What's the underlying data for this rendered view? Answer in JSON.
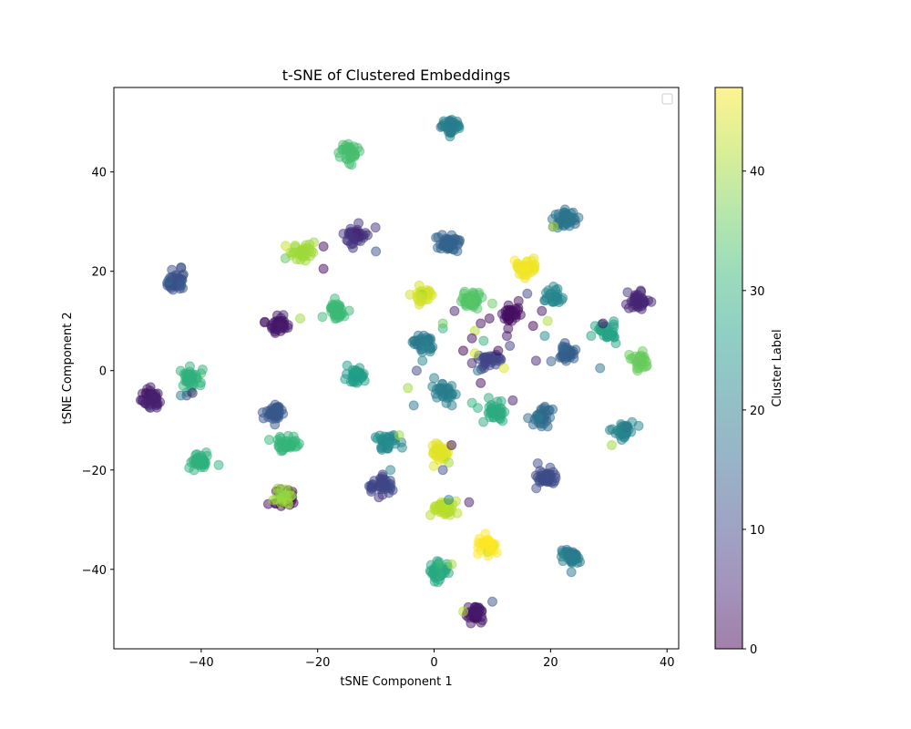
{
  "chart_data": {
    "type": "scatter",
    "title": "t-SNE of Clustered Embeddings",
    "xlabel": "tSNE Component 1",
    "ylabel": "tSNE Component 2",
    "xlim": [
      -55,
      42
    ],
    "ylim": [
      -56,
      57
    ],
    "xticks": [
      -40,
      -20,
      0,
      20,
      40
    ],
    "yticks": [
      -40,
      -20,
      0,
      20,
      40
    ],
    "grid": false,
    "legend": "top-right (empty)",
    "marker_alpha": 0.5,
    "colorbar": {
      "label": "Cluster Label",
      "range": [
        0,
        47
      ],
      "ticks": [
        0,
        10,
        20,
        30,
        40
      ],
      "colormap": "viridis",
      "colormap_stops": [
        "#440154",
        "#482878",
        "#3e4989",
        "#31688e",
        "#26828e",
        "#1f9e89",
        "#35b779",
        "#6ece58",
        "#b5de2b",
        "#fde725"
      ]
    },
    "clusters": [
      {
        "cx": 3,
        "cy": 49.5,
        "label": 20,
        "n": 40
      },
      {
        "cx": -14.5,
        "cy": 43.5,
        "label": 33,
        "n": 35
      },
      {
        "cx": 22.5,
        "cy": 30.5,
        "label": 18,
        "n": 40
      },
      {
        "cx": -13.5,
        "cy": 27,
        "label": 7,
        "n": 40
      },
      {
        "cx": 2.5,
        "cy": 25.5,
        "label": 15,
        "n": 45
      },
      {
        "cx": -22.5,
        "cy": 24,
        "label": 40,
        "n": 35
      },
      {
        "cx": 15.5,
        "cy": 20.5,
        "label": 46,
        "n": 40
      },
      {
        "cx": -44.5,
        "cy": 18,
        "label": 12,
        "n": 45
      },
      {
        "cx": -2,
        "cy": 15,
        "label": 44,
        "n": 30
      },
      {
        "cx": 6.5,
        "cy": 14.5,
        "label": 34,
        "n": 35
      },
      {
        "cx": -17,
        "cy": 12,
        "label": 32,
        "n": 40
      },
      {
        "cx": 35,
        "cy": 14,
        "label": 5,
        "n": 40
      },
      {
        "cx": 20.5,
        "cy": 15,
        "label": 22,
        "n": 25
      },
      {
        "cx": -26.5,
        "cy": 9.5,
        "label": 3,
        "n": 40
      },
      {
        "cx": 30,
        "cy": 8,
        "label": 27,
        "n": 30
      },
      {
        "cx": 13,
        "cy": 11,
        "label": 2,
        "n": 30
      },
      {
        "cx": -2,
        "cy": 5.5,
        "label": 19,
        "n": 35
      },
      {
        "cx": 35.5,
        "cy": 2,
        "label": 36,
        "n": 30
      },
      {
        "cx": 23,
        "cy": 3.5,
        "label": 14,
        "n": 40
      },
      {
        "cx": 9.5,
        "cy": 2,
        "label": 10,
        "n": 30
      },
      {
        "cx": -42,
        "cy": -1.5,
        "label": 30,
        "n": 40
      },
      {
        "cx": -13.5,
        "cy": -1,
        "label": 26,
        "n": 35
      },
      {
        "cx": 1.5,
        "cy": -4,
        "label": 20,
        "n": 30
      },
      {
        "cx": -48.5,
        "cy": -5.5,
        "label": 4,
        "n": 40
      },
      {
        "cx": -27.5,
        "cy": -8.5,
        "label": 13,
        "n": 35
      },
      {
        "cx": 10.5,
        "cy": -8.5,
        "label": 29,
        "n": 35
      },
      {
        "cx": 18.5,
        "cy": -9,
        "label": 16,
        "n": 35
      },
      {
        "cx": 32.5,
        "cy": -12,
        "label": 21,
        "n": 35
      },
      {
        "cx": -25.5,
        "cy": -15,
        "label": 31,
        "n": 35
      },
      {
        "cx": -8,
        "cy": -14.5,
        "label": 22,
        "n": 30
      },
      {
        "cx": 1,
        "cy": -16.5,
        "label": 45,
        "n": 40
      },
      {
        "cx": -40.5,
        "cy": -18.5,
        "label": 30,
        "n": 40
      },
      {
        "cx": -9,
        "cy": -23,
        "label": 10,
        "n": 40
      },
      {
        "cx": 19,
        "cy": -21.5,
        "label": 11,
        "n": 40
      },
      {
        "cx": -25.5,
        "cy": -25.5,
        "label": 1,
        "n": 30
      },
      {
        "cx": -26,
        "cy": -25.5,
        "label": 40,
        "n": 20
      },
      {
        "cx": 1.5,
        "cy": -27.5,
        "label": 42,
        "n": 35
      },
      {
        "cx": 9,
        "cy": -35,
        "label": 47,
        "n": 35
      },
      {
        "cx": 23.5,
        "cy": -37.5,
        "label": 20,
        "n": 40
      },
      {
        "cx": 1,
        "cy": -40.5,
        "label": 28,
        "n": 45
      },
      {
        "cx": 7,
        "cy": -49,
        "label": 3,
        "n": 40
      }
    ],
    "scattered": [
      {
        "x": -19,
        "y": 25,
        "label": 2
      },
      {
        "x": -19,
        "y": 20.5,
        "label": 1
      },
      {
        "x": -10,
        "y": 24,
        "label": 12
      },
      {
        "x": 3.5,
        "y": 12,
        "label": 5
      },
      {
        "x": 8,
        "y": 9.5,
        "label": 2
      },
      {
        "x": 10,
        "y": 13.5,
        "label": 36
      },
      {
        "x": 9.5,
        "y": 10.5,
        "label": 1
      },
      {
        "x": 12.5,
        "y": 7,
        "label": 3
      },
      {
        "x": 7,
        "y": 8,
        "label": 42
      },
      {
        "x": 6.5,
        "y": 6.5,
        "label": 2
      },
      {
        "x": 8.5,
        "y": 6,
        "label": 30
      },
      {
        "x": 5,
        "y": 4,
        "label": 0
      },
      {
        "x": 7,
        "y": 3.5,
        "label": 44
      },
      {
        "x": 6.5,
        "y": 1.5,
        "label": 5
      },
      {
        "x": 7.5,
        "y": 0,
        "label": 17
      },
      {
        "x": 11,
        "y": 4,
        "label": 1
      },
      {
        "x": 13,
        "y": 5,
        "label": 9
      },
      {
        "x": 12,
        "y": 0.5,
        "label": 45
      },
      {
        "x": 17,
        "y": 9,
        "label": 0
      },
      {
        "x": 18.5,
        "y": 12,
        "label": 3
      },
      {
        "x": 19.5,
        "y": 10,
        "label": 41
      },
      {
        "x": 17.5,
        "y": 2,
        "label": 5
      },
      {
        "x": 19,
        "y": 7,
        "label": 22
      },
      {
        "x": 28.5,
        "y": 0.5,
        "label": 18
      },
      {
        "x": 29,
        "y": 9.5,
        "label": 2
      },
      {
        "x": 30.5,
        "y": -15,
        "label": 40
      },
      {
        "x": 1.5,
        "y": 8.5,
        "label": 30
      },
      {
        "x": 1.5,
        "y": 9.5,
        "label": 36
      },
      {
        "x": -2,
        "y": 2,
        "label": 22
      },
      {
        "x": -3,
        "y": 0,
        "label": 10
      },
      {
        "x": 0,
        "y": -1.5,
        "label": 20
      },
      {
        "x": -4.5,
        "y": -3.5,
        "label": 40
      },
      {
        "x": -3.5,
        "y": -7,
        "label": 18
      },
      {
        "x": 6.5,
        "y": -6.5,
        "label": 30
      },
      {
        "x": 7.5,
        "y": -7.5,
        "label": 30
      },
      {
        "x": 8,
        "y": -2.5,
        "label": 2
      },
      {
        "x": 13.5,
        "y": -6,
        "label": 4
      },
      {
        "x": -7.5,
        "y": -20,
        "label": 22
      },
      {
        "x": -6,
        "y": -13,
        "label": 40
      },
      {
        "x": -5.5,
        "y": -15.5,
        "label": 22
      },
      {
        "x": 2.5,
        "y": -18.5,
        "label": 40
      },
      {
        "x": 1.5,
        "y": -20,
        "label": 12
      },
      {
        "x": 3,
        "y": -15,
        "label": 2
      },
      {
        "x": 6,
        "y": -26.5,
        "label": 4
      },
      {
        "x": 2.5,
        "y": -26,
        "label": 22
      },
      {
        "x": -42.5,
        "y": -5,
        "label": 10
      },
      {
        "x": -43.5,
        "y": -5,
        "label": 20
      },
      {
        "x": -41.5,
        "y": -4.5,
        "label": 5
      },
      {
        "x": -37,
        "y": -19,
        "label": 30
      },
      {
        "x": -23,
        "y": 10.5,
        "label": 40
      },
      {
        "x": -9.5,
        "y": -25.5,
        "label": 6
      },
      {
        "x": 3,
        "y": -39,
        "label": 40
      },
      {
        "x": 5,
        "y": -48.5,
        "label": 42
      },
      {
        "x": 10,
        "y": -46.5,
        "label": 12
      },
      {
        "x": 20.5,
        "y": 29,
        "label": 42
      },
      {
        "x": 16,
        "y": 15.5,
        "label": 10
      },
      {
        "x": 14.5,
        "y": 14,
        "label": 2
      }
    ]
  }
}
